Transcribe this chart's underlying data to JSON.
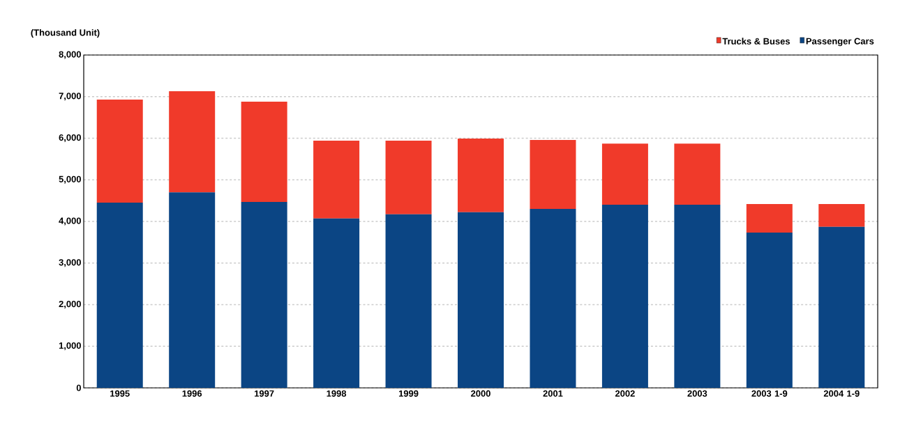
{
  "chart_data": {
    "type": "bar",
    "stacked": true,
    "ylabel": "(Thousand Unit)",
    "categories": [
      "1995",
      "1996",
      "1997",
      "1998",
      "1999",
      "2000",
      "2001",
      "2002",
      "2003",
      "2003 1-9",
      "2004 1-9"
    ],
    "series": [
      {
        "name": "Passenger Cars",
        "color": "#0b4584",
        "values": [
          4450,
          4700,
          4470,
          4070,
          4170,
          4220,
          4300,
          4400,
          4400,
          3730,
          3870
        ]
      },
      {
        "name": "Trucks & Buses",
        "color": "#f03a2a",
        "values": [
          2480,
          2430,
          2410,
          1870,
          1770,
          1770,
          1660,
          1470,
          1470,
          690,
          550
        ]
      }
    ],
    "ylim": [
      0,
      8000
    ],
    "yticks": [
      {
        "value": 0,
        "label": "0"
      },
      {
        "value": 1000,
        "label": "1,000"
      },
      {
        "value": 2000,
        "label": "2,000"
      },
      {
        "value": 3000,
        "label": "3,000"
      },
      {
        "value": 4000,
        "label": "4,000"
      },
      {
        "value": 5000,
        "label": "5,000"
      },
      {
        "value": 6000,
        "label": "6,000"
      },
      {
        "value": 7000,
        "label": "7,000"
      },
      {
        "value": 8000,
        "label": "8,000"
      }
    ],
    "grid": "y",
    "legend": "top right"
  }
}
